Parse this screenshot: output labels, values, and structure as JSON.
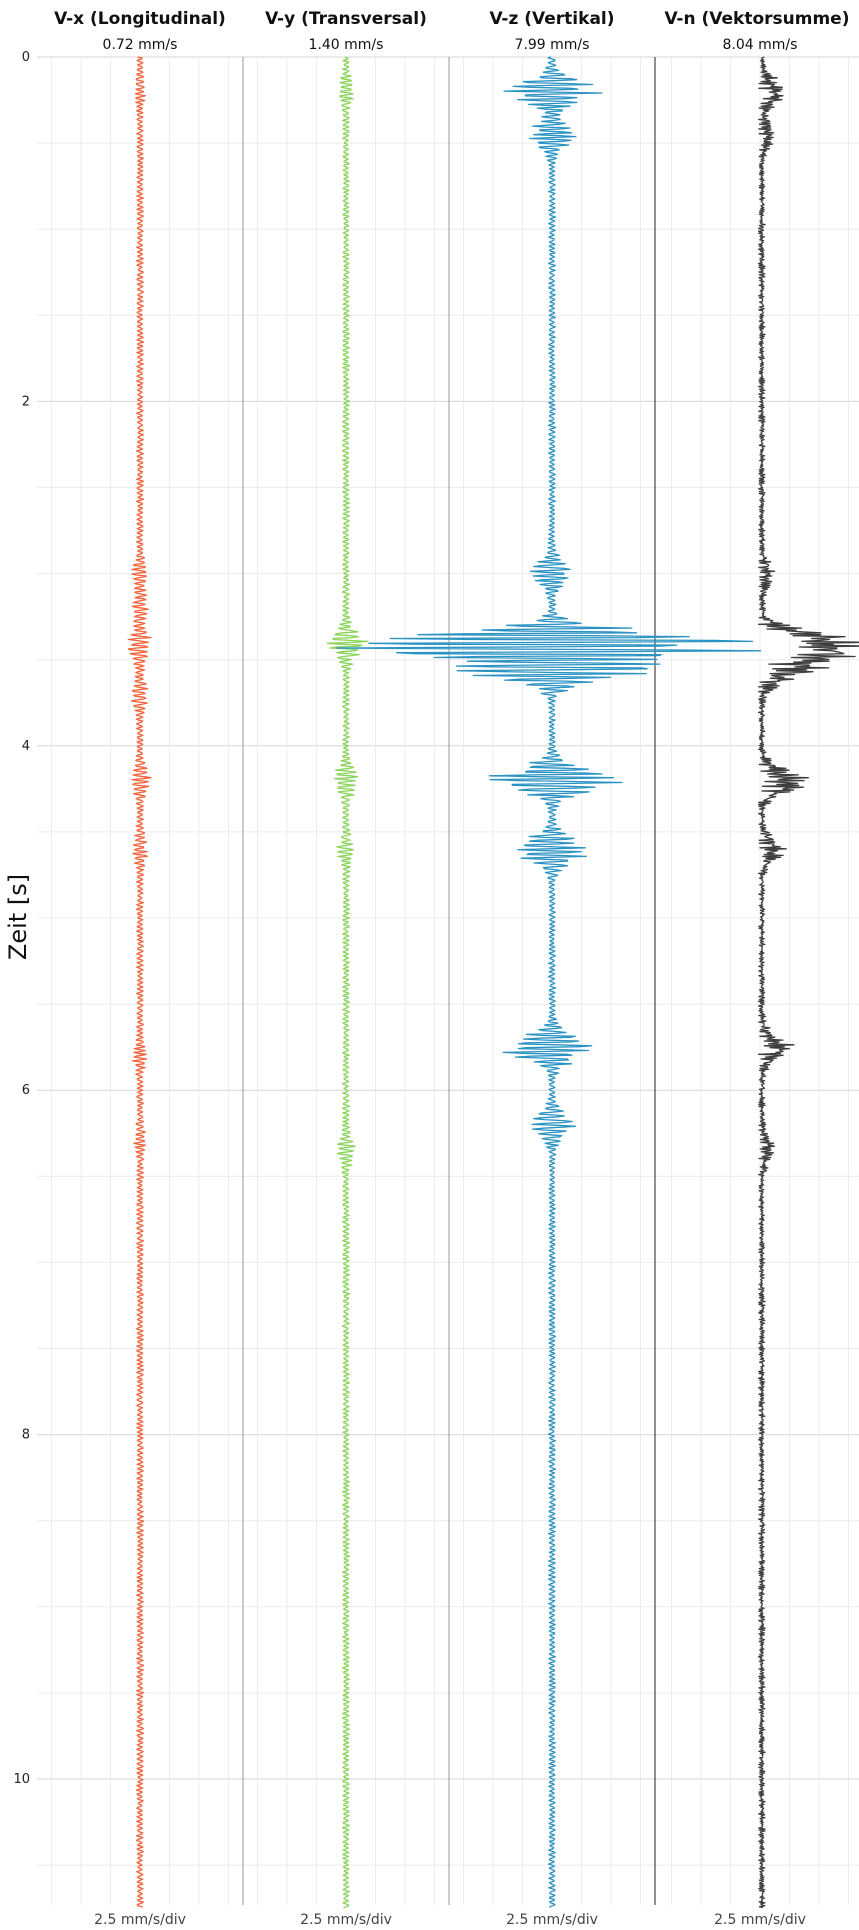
{
  "chart_data": {
    "type": "line",
    "ylabel": "Zeit [s]",
    "ylim": [
      0,
      10.75
    ],
    "yticks": [
      0,
      2,
      4,
      6,
      8,
      10
    ],
    "grid": true,
    "y_inverted": true,
    "series": [
      {
        "name": "V-x (Longitudinal)",
        "peak_label": "0.72 mm/s",
        "scale_label": "2.5 mm/s/div",
        "color": "#f4623a",
        "bursts": [
          {
            "t": 0.2,
            "amp": 0.08
          },
          {
            "t": 3.0,
            "amp": 0.18
          },
          {
            "t": 3.2,
            "amp": 0.2
          },
          {
            "t": 3.42,
            "amp": 0.38
          },
          {
            "t": 3.7,
            "amp": 0.22
          },
          {
            "t": 4.2,
            "amp": 0.28
          },
          {
            "t": 4.6,
            "amp": 0.18
          },
          {
            "t": 5.8,
            "amp": 0.15
          },
          {
            "t": 6.3,
            "amp": 0.1
          }
        ]
      },
      {
        "name": "V-y (Transversal)",
        "peak_label": "1.40 mm/s",
        "scale_label": "2.5 mm/s/div",
        "color": "#8bd45a",
        "bursts": [
          {
            "t": 0.2,
            "amp": 0.18
          },
          {
            "t": 3.41,
            "amp": 0.65
          },
          {
            "t": 4.2,
            "amp": 0.4
          },
          {
            "t": 4.6,
            "amp": 0.2
          },
          {
            "t": 6.35,
            "amp": 0.22
          }
        ]
      },
      {
        "name": "V-z (Vertikal)",
        "peak_label": "7.99 mm/s",
        "scale_label": "2.5 mm/s/div",
        "color": "#2b93c3",
        "bursts": [
          {
            "t": 0.2,
            "amp": 1.6
          },
          {
            "t": 0.45,
            "amp": 0.8
          },
          {
            "t": 3.0,
            "amp": 0.7
          },
          {
            "t": 3.41,
            "amp": 8.0
          },
          {
            "t": 3.55,
            "amp": 3.5
          },
          {
            "t": 4.2,
            "amp": 2.4
          },
          {
            "t": 4.6,
            "amp": 1.4
          },
          {
            "t": 5.75,
            "amp": 1.8
          },
          {
            "t": 6.2,
            "amp": 0.7
          }
        ]
      },
      {
        "name": "V-n (Vektorsumme)",
        "peak_label": "8.04 mm/s",
        "scale_label": "2.5 mm/s/div",
        "color": "#3d3d3d",
        "rectified": true,
        "bursts": [
          {
            "t": 0.2,
            "amp": 1.0
          },
          {
            "t": 0.45,
            "amp": 0.55
          },
          {
            "t": 3.0,
            "amp": 0.45
          },
          {
            "t": 3.41,
            "amp": 4.8
          },
          {
            "t": 3.55,
            "amp": 2.5
          },
          {
            "t": 4.2,
            "amp": 1.8
          },
          {
            "t": 4.6,
            "amp": 0.9
          },
          {
            "t": 5.75,
            "amp": 1.2
          },
          {
            "t": 6.35,
            "amp": 0.45
          }
        ]
      }
    ]
  }
}
